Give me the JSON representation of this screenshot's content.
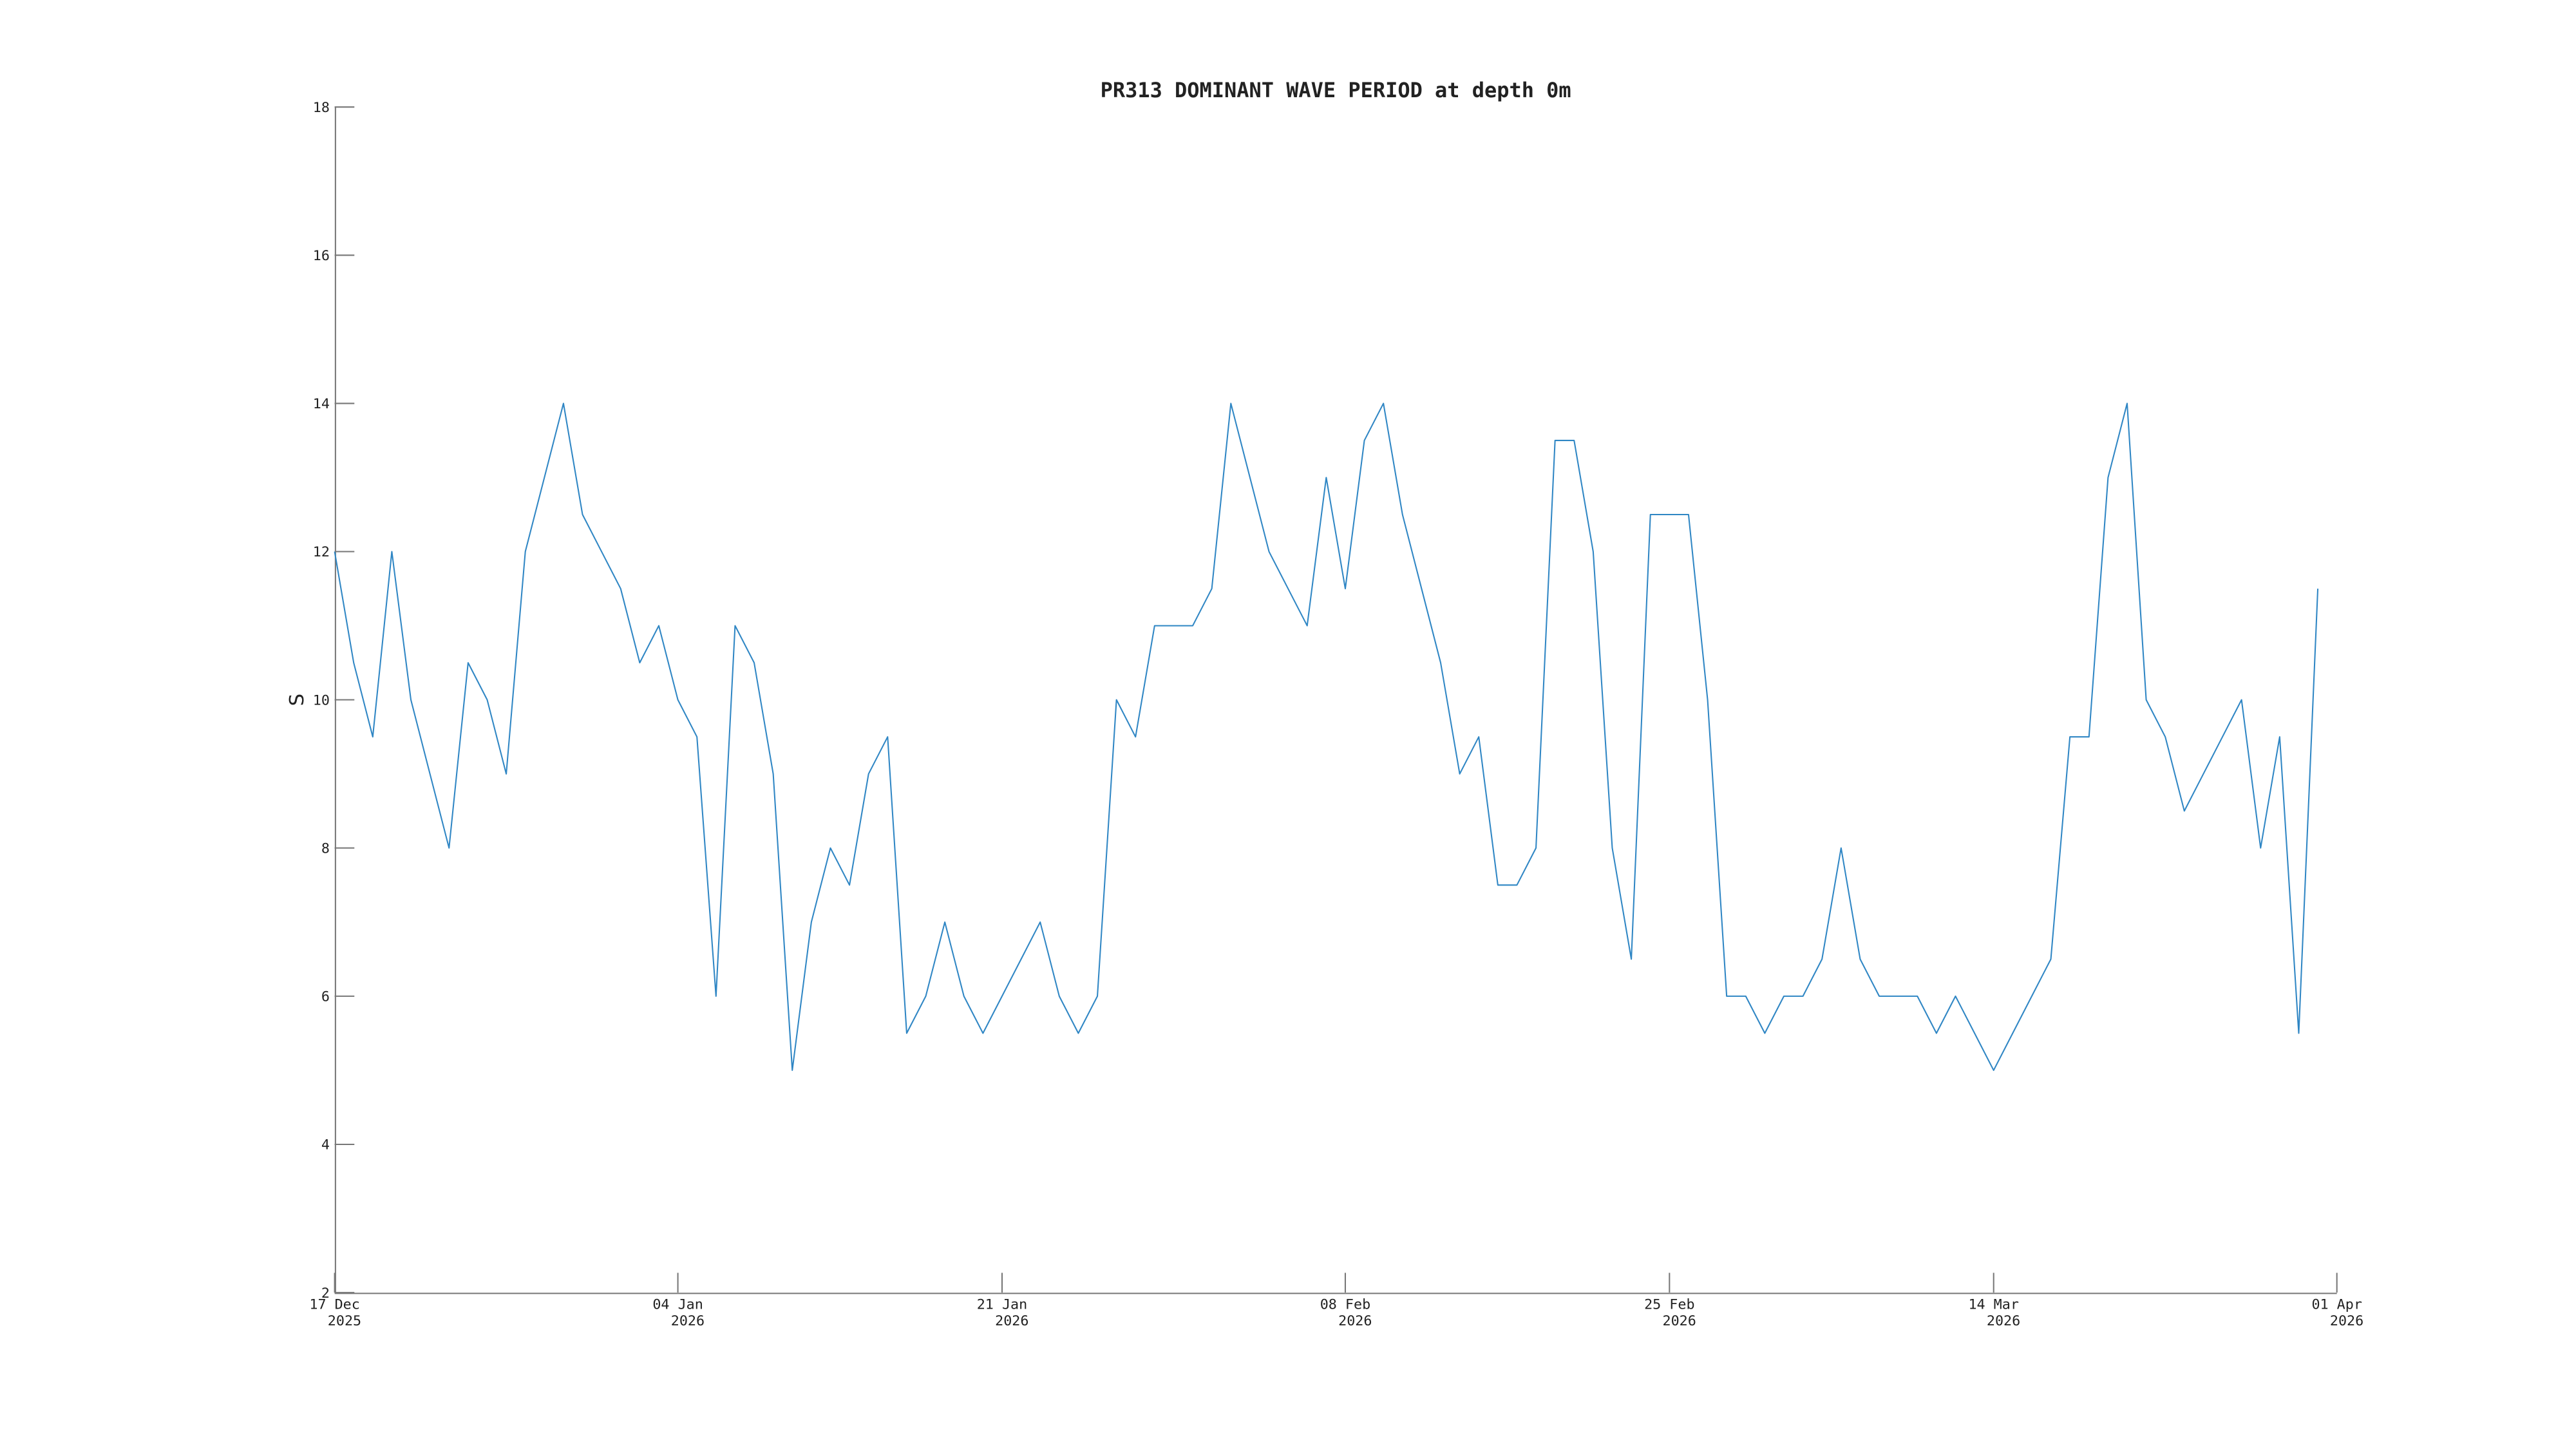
{
  "chart_data": {
    "type": "line",
    "title": "PR313 DOMINANT WAVE PERIOD at depth 0m",
    "y_label": "S",
    "color": "#2f86c4",
    "xlim": [
      "2025-12-17",
      "2026-04-01"
    ],
    "xticks": [
      {
        "value": "2025-12-17",
        "label": [
          "17 Dec",
          "2025"
        ]
      },
      {
        "value": "2026-01-04",
        "label": [
          "04 Jan",
          "2026"
        ]
      },
      {
        "value": "2026-01-21",
        "label": [
          "21 Jan",
          "2026"
        ]
      },
      {
        "value": "2026-02-08",
        "label": [
          "08 Feb",
          "2026"
        ]
      },
      {
        "value": "2026-02-25",
        "label": [
          "25 Feb",
          "2026"
        ]
      },
      {
        "value": "2026-03-14",
        "label": [
          "14 Mar",
          "2026"
        ]
      },
      {
        "value": "2026-04-01",
        "label": [
          "01 Apr",
          "2026"
        ]
      }
    ],
    "ylim": [
      2,
      18
    ],
    "yticks": [
      2,
      4,
      6,
      8,
      10,
      12,
      14,
      16,
      18
    ],
    "x": [
      "2025-12-17",
      "2025-12-18",
      "2025-12-19",
      "2025-12-20",
      "2025-12-21",
      "2025-12-22",
      "2025-12-23",
      "2025-12-24",
      "2025-12-25",
      "2025-12-26",
      "2025-12-27",
      "2025-12-28",
      "2025-12-29",
      "2025-12-30",
      "2025-12-31",
      "2026-01-01",
      "2026-01-02",
      "2026-01-03",
      "2026-01-04",
      "2026-01-05",
      "2026-01-06",
      "2026-01-07",
      "2026-01-08",
      "2026-01-09",
      "2026-01-10",
      "2026-01-11",
      "2026-01-12",
      "2026-01-13",
      "2026-01-14",
      "2026-01-15",
      "2026-01-16",
      "2026-01-17",
      "2026-01-18",
      "2026-01-19",
      "2026-01-20",
      "2026-01-21",
      "2026-01-22",
      "2026-01-23",
      "2026-01-24",
      "2026-01-25",
      "2026-01-26",
      "2026-01-27",
      "2026-01-28",
      "2026-01-29",
      "2026-01-30",
      "2026-01-31",
      "2026-02-01",
      "2026-02-02",
      "2026-02-03",
      "2026-02-04",
      "2026-02-05",
      "2026-02-06",
      "2026-02-07",
      "2026-02-08",
      "2026-02-09",
      "2026-02-10",
      "2026-02-11",
      "2026-02-12",
      "2026-02-13",
      "2026-02-14",
      "2026-02-15",
      "2026-02-16",
      "2026-02-17",
      "2026-02-18",
      "2026-02-19",
      "2026-02-20",
      "2026-02-21",
      "2026-02-22",
      "2026-02-23",
      "2026-02-24",
      "2026-02-25",
      "2026-02-26",
      "2026-02-27",
      "2026-02-28",
      "2026-03-01",
      "2026-03-02",
      "2026-03-03",
      "2026-03-04",
      "2026-03-05",
      "2026-03-06",
      "2026-03-07",
      "2026-03-08",
      "2026-03-09",
      "2026-03-10",
      "2026-03-11",
      "2026-03-12",
      "2026-03-13",
      "2026-03-14",
      "2026-03-15",
      "2026-03-16",
      "2026-03-17",
      "2026-03-18",
      "2026-03-19",
      "2026-03-20",
      "2026-03-21",
      "2026-03-22",
      "2026-03-23",
      "2026-03-24",
      "2026-03-25",
      "2026-03-26",
      "2026-03-27",
      "2026-03-28",
      "2026-03-29",
      "2026-03-30",
      "2026-03-31"
    ],
    "values": [
      12,
      10.5,
      9.5,
      12,
      10,
      9,
      8,
      10.5,
      10,
      9,
      12,
      13,
      14,
      12.5,
      12,
      11.5,
      10.5,
      11,
      10,
      9.5,
      6,
      11,
      10.5,
      9,
      5,
      7,
      8,
      7.5,
      9,
      9.5,
      5.5,
      6,
      7,
      6,
      5.5,
      6,
      6.5,
      7,
      6,
      5.5,
      6,
      10,
      9.5,
      11,
      11,
      11,
      11.5,
      14,
      13,
      12,
      11.5,
      11,
      13,
      11.5,
      13.5,
      14,
      12.5,
      11.5,
      10.5,
      9,
      9.5,
      7.5,
      7.5,
      8,
      13.5,
      13.5,
      12,
      8,
      6.5,
      12.5,
      12.5,
      12.5,
      10,
      6,
      6,
      5.5,
      6,
      6,
      6.5,
      8,
      6.5,
      6,
      6,
      6,
      5.5,
      6,
      5.5,
      5,
      5.5,
      6,
      6.5,
      9.5,
      9.5,
      13,
      14,
      10,
      9.5,
      8.5,
      9,
      9.5,
      10,
      8,
      9.5,
      5.5,
      11.5
    ]
  }
}
